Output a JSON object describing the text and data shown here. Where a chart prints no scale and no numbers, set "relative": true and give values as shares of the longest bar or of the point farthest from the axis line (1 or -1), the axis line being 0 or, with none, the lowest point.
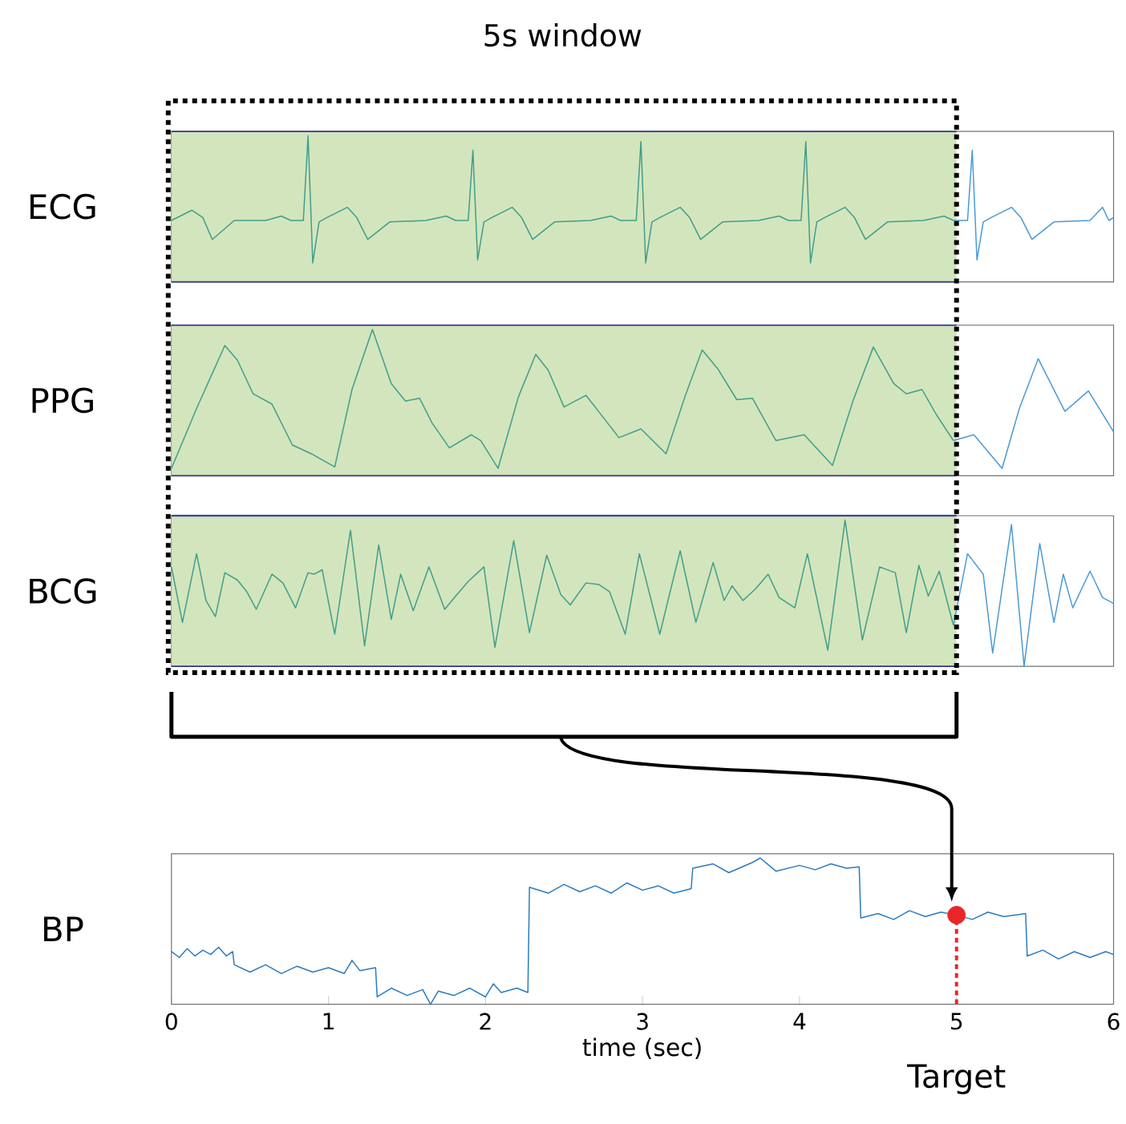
{
  "chart_data": [
    {
      "type": "line",
      "relative": true,
      "ylabel": "ECG",
      "annotations": [
        "5s window"
      ],
      "xlim": [
        0,
        6
      ],
      "tick_labels": false,
      "bands": [
        {
          "axis": "x",
          "from": 0,
          "to": 5,
          "color": "#d3e5bc"
        }
      ],
      "series": [
        {
          "color": "#3f9e8c",
          "x": [
            0,
            0.13,
            0.2,
            0.26,
            0.4,
            0.6,
            0.7,
            0.76,
            0.84,
            0.87,
            0.9,
            0.94,
            0.99,
            1.12,
            1.18,
            1.25,
            1.39,
            1.62,
            1.75,
            1.81,
            1.89,
            1.92,
            1.95,
            1.99,
            2.04,
            2.17,
            2.23,
            2.3,
            2.44,
            2.67,
            2.8,
            2.86,
            2.96,
            2.99,
            3.02,
            3.06,
            3.11,
            3.24,
            3.3,
            3.37,
            3.51,
            3.74,
            3.87,
            3.93,
            4.01,
            4.04,
            4.07,
            4.11,
            4.16,
            4.29,
            4.35,
            4.42,
            4.56,
            4.79,
            4.92,
            4.98
          ],
          "values": [
            0.42,
            0.49,
            0.44,
            0.29,
            0.42,
            0.42,
            0.45,
            0.42,
            0.42,
            1.0,
            0.13,
            0.41,
            0.44,
            0.51,
            0.44,
            0.29,
            0.41,
            0.42,
            0.45,
            0.42,
            0.42,
            0.9,
            0.15,
            0.41,
            0.44,
            0.51,
            0.44,
            0.29,
            0.41,
            0.42,
            0.45,
            0.42,
            0.42,
            0.96,
            0.13,
            0.41,
            0.44,
            0.51,
            0.44,
            0.29,
            0.41,
            0.42,
            0.45,
            0.42,
            0.42,
            0.96,
            0.13,
            0.41,
            0.44,
            0.51,
            0.44,
            0.29,
            0.41,
            0.42,
            0.45,
            0.42
          ]
        },
        {
          "color": "#4a9ad4",
          "x": [
            4.98,
            5.04,
            5.07,
            5.1,
            5.13,
            5.17,
            5.22,
            5.35,
            5.41,
            5.48,
            5.62,
            5.85,
            5.93,
            5.97,
            6.0
          ],
          "values": [
            0.42,
            0.42,
            0.42,
            0.9,
            0.15,
            0.41,
            0.44,
            0.51,
            0.44,
            0.29,
            0.41,
            0.42,
            0.51,
            0.42,
            0.44
          ]
        }
      ]
    },
    {
      "type": "line",
      "relative": true,
      "ylabel": "PPG",
      "xlim": [
        0,
        6
      ],
      "tick_labels": false,
      "bands": [
        {
          "axis": "x",
          "from": 0,
          "to": 5,
          "color": "#d3e5bc"
        }
      ],
      "series": [
        {
          "color": "#3f9e8c",
          "x": [
            0,
            0.16,
            0.34,
            0.42,
            0.52,
            0.64,
            0.77,
            0.89,
            1.04,
            1.15,
            1.28,
            1.4,
            1.49,
            1.58,
            1.66,
            1.77,
            1.91,
            1.97,
            2.08,
            2.21,
            2.32,
            2.4,
            2.5,
            2.64,
            2.72,
            2.85,
            2.99,
            3.15,
            3.27,
            3.38,
            3.48,
            3.6,
            3.7,
            3.85,
            4.03,
            4.21,
            4.34,
            4.47,
            4.6,
            4.68,
            4.78,
            4.87,
            4.98
          ],
          "values": [
            0.05,
            0.46,
            0.89,
            0.79,
            0.56,
            0.49,
            0.21,
            0.15,
            0.06,
            0.59,
            1.0,
            0.63,
            0.51,
            0.53,
            0.36,
            0.19,
            0.28,
            0.24,
            0.05,
            0.54,
            0.83,
            0.72,
            0.47,
            0.55,
            0.44,
            0.26,
            0.32,
            0.15,
            0.54,
            0.86,
            0.73,
            0.52,
            0.53,
            0.24,
            0.28,
            0.07,
            0.51,
            0.88,
            0.63,
            0.56,
            0.59,
            0.42,
            0.24
          ]
        },
        {
          "color": "#4a9ad4",
          "x": [
            4.98,
            5.11,
            5.29,
            5.4,
            5.52,
            5.69,
            5.84,
            6.0
          ],
          "values": [
            0.24,
            0.28,
            0.05,
            0.46,
            0.8,
            0.44,
            0.58,
            0.3
          ]
        }
      ]
    },
    {
      "type": "line",
      "relative": true,
      "ylabel": "BCG",
      "xlim": [
        0,
        6
      ],
      "tick_labels": false,
      "bands": [
        {
          "axis": "x",
          "from": 0,
          "to": 5,
          "color": "#d3e5bc"
        }
      ],
      "series": [
        {
          "color": "#3f9e8c",
          "x": [
            0,
            0.07,
            0.16,
            0.22,
            0.28,
            0.34,
            0.42,
            0.48,
            0.54,
            0.64,
            0.71,
            0.79,
            0.87,
            0.91,
            0.96,
            1.04,
            1.14,
            1.23,
            1.32,
            1.4,
            1.46,
            1.54,
            1.64,
            1.74,
            1.81,
            1.89,
            1.99,
            2.06,
            2.18,
            2.28,
            2.39,
            2.48,
            2.54,
            2.64,
            2.72,
            2.79,
            2.89,
            2.98,
            3.11,
            3.24,
            3.34,
            3.45,
            3.52,
            3.57,
            3.64,
            3.72,
            3.8,
            3.87,
            3.97,
            4.05,
            4.18,
            4.29,
            4.4,
            4.51,
            4.61,
            4.68,
            4.76,
            4.82,
            4.89,
            4.98
          ],
          "values": [
            0.68,
            0.3,
            0.77,
            0.45,
            0.34,
            0.64,
            0.59,
            0.51,
            0.39,
            0.63,
            0.57,
            0.4,
            0.64,
            0.63,
            0.66,
            0.22,
            0.93,
            0.14,
            0.83,
            0.32,
            0.63,
            0.38,
            0.68,
            0.39,
            0.48,
            0.58,
            0.68,
            0.13,
            0.86,
            0.23,
            0.76,
            0.49,
            0.42,
            0.57,
            0.56,
            0.51,
            0.22,
            0.77,
            0.22,
            0.79,
            0.3,
            0.71,
            0.45,
            0.55,
            0.45,
            0.53,
            0.63,
            0.47,
            0.4,
            0.77,
            0.11,
            1.0,
            0.18,
            0.68,
            0.64,
            0.23,
            0.69,
            0.48,
            0.65,
            0.28
          ]
        },
        {
          "color": "#4a9ad4",
          "x": [
            4.98,
            5.07,
            5.17,
            5.23,
            5.35,
            5.43,
            5.53,
            5.62,
            5.68,
            5.74,
            5.85,
            5.93,
            6.0
          ],
          "values": [
            0.28,
            0.77,
            0.63,
            0.09,
            0.97,
            0.0,
            0.84,
            0.3,
            0.63,
            0.4,
            0.65,
            0.47,
            0.43
          ]
        }
      ]
    },
    {
      "type": "line",
      "relative": true,
      "ylabel": "BP",
      "xlabel": "time (sec)",
      "xlim": [
        0,
        6
      ],
      "xticks": [
        0,
        1,
        2,
        3,
        4,
        5,
        6
      ],
      "tick_labels": "x",
      "annotations": [
        "Target"
      ],
      "ref_lines": [
        {
          "axis": "x",
          "value": 5,
          "color": "#e8262a",
          "line_style": "dotted"
        }
      ],
      "series": [
        {
          "color": "#2a7bc0",
          "x": [
            0,
            0.05,
            0.1,
            0.15,
            0.2,
            0.25,
            0.3,
            0.35,
            0.39,
            0.4,
            0.5,
            0.6,
            0.7,
            0.8,
            0.9,
            1.0,
            1.1,
            1.15,
            1.2,
            1.3,
            1.31,
            1.4,
            1.5,
            1.6,
            1.65,
            1.7,
            1.8,
            1.9,
            2.0,
            2.05,
            2.1,
            2.2,
            2.27,
            2.28,
            2.4,
            2.5,
            2.6,
            2.7,
            2.8,
            2.9,
            3.0,
            3.1,
            3.2,
            3.31,
            3.32,
            3.45,
            3.55,
            3.7,
            3.75,
            3.85,
            4.0,
            4.1,
            4.2,
            4.3,
            4.38,
            4.39,
            4.5,
            4.6,
            4.7,
            4.8,
            4.9,
            5.0,
            5.1,
            5.2,
            5.3,
            5.44,
            5.45,
            5.55,
            5.65,
            5.75,
            5.85,
            5.95,
            6.0
          ],
          "values": [
            0.36,
            0.32,
            0.38,
            0.33,
            0.37,
            0.34,
            0.39,
            0.33,
            0.36,
            0.27,
            0.22,
            0.27,
            0.21,
            0.26,
            0.22,
            0.25,
            0.21,
            0.3,
            0.23,
            0.25,
            0.05,
            0.11,
            0.06,
            0.1,
            0.0,
            0.09,
            0.06,
            0.11,
            0.05,
            0.14,
            0.08,
            0.11,
            0.08,
            0.8,
            0.76,
            0.82,
            0.77,
            0.81,
            0.76,
            0.83,
            0.78,
            0.81,
            0.76,
            0.79,
            0.93,
            0.96,
            0.9,
            0.97,
            1.0,
            0.91,
            0.95,
            0.92,
            0.96,
            0.93,
            0.94,
            0.59,
            0.62,
            0.58,
            0.64,
            0.6,
            0.63,
            0.61,
            0.58,
            0.63,
            0.6,
            0.62,
            0.33,
            0.37,
            0.31,
            0.36,
            0.32,
            0.36,
            0.34
          ]
        },
        {
          "type": "scatter",
          "marker": "circle",
          "color": "#e8262a",
          "x": [
            5
          ],
          "values": [
            0.61
          ]
        }
      ]
    }
  ]
}
